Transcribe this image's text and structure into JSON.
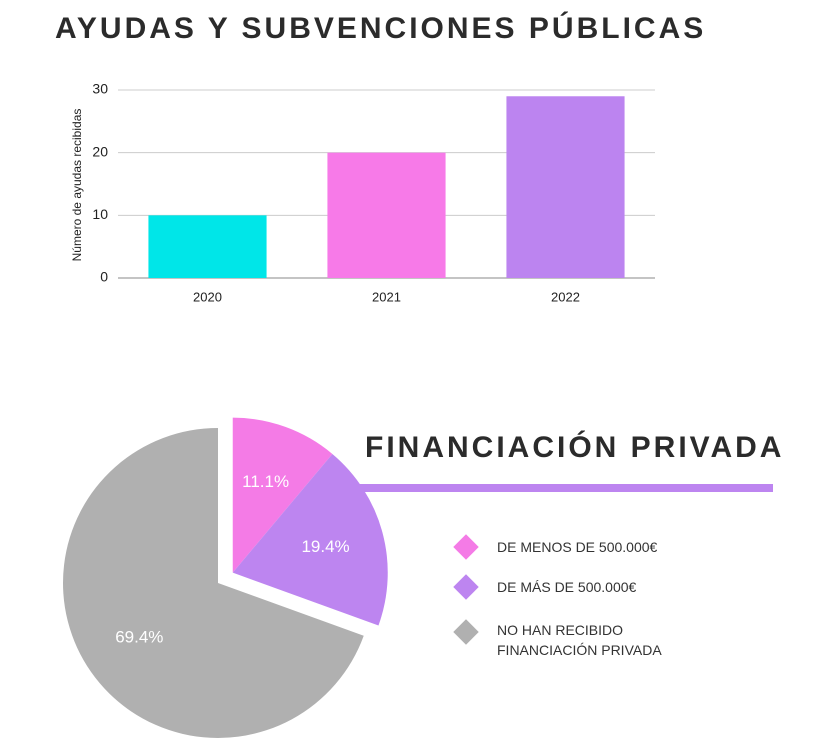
{
  "chart_data": [
    {
      "type": "bar",
      "title": "AYUDAS Y SUBVENCIONES PÚBLICAS",
      "y_label": "Número de ayudas recibidas",
      "categories": [
        "2020",
        "2021",
        "2022"
      ],
      "values": [
        10,
        20,
        29
      ],
      "colors": [
        "#00e6e8",
        "#f77ae8",
        "#bc84f0"
      ],
      "ylim": [
        0,
        30
      ],
      "yticks": [
        0,
        10,
        20,
        30
      ],
      "grid": true
    },
    {
      "type": "pie",
      "title": "FINANCIACIÓN PRIVADA",
      "categories": [
        "DE MENOS DE 500.000€",
        "DE MÁS DE 500.000€",
        "NO HAN RECIBIDO FINANCIACIÓN PRIVADA"
      ],
      "values": [
        11.1,
        19.4,
        69.4
      ],
      "value_labels": [
        "11.1%",
        "19.4%",
        "69.4%"
      ],
      "colors": [
        "#f47be6",
        "#bd85f0",
        "#b0b0b0"
      ]
    }
  ]
}
